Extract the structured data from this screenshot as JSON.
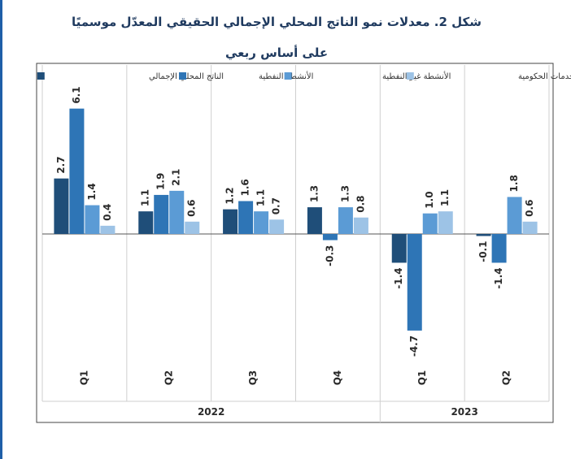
{
  "colors": {
    "gdp": "#1f4e79",
    "oil": "#2e75b6",
    "nonoil": "#5b9bd5",
    "gov": "#9dc3e6",
    "frame": "#444444",
    "grid": "#cfcfcf",
    "title": "#1f3a5f"
  },
  "chart_data": {
    "type": "bar",
    "title": "شكل 2. معدلات نمو الناتج المحلي الإجمالي الحقيقي المعدّل موسميًا",
    "subtitle": "على أساس ربعي",
    "xlabel": "",
    "ylabel": "",
    "ylim": [
      -5,
      7
    ],
    "grid": "vertical separators between quarters",
    "legend_position": "top",
    "categories": [
      "Q1",
      "Q2",
      "Q3",
      "Q4",
      "Q1",
      "Q2"
    ],
    "years": [
      {
        "label": "2022",
        "quarters": 4
      },
      {
        "label": "2023",
        "quarters": 2
      }
    ],
    "series": [
      {
        "name": "الناتج المحلي الإجمالي",
        "key": "gdp",
        "values": [
          2.7,
          1.1,
          1.2,
          1.3,
          -1.4,
          -0.1
        ]
      },
      {
        "name": "الأنشطة النفطية",
        "key": "oil",
        "values": [
          6.1,
          1.9,
          1.6,
          -0.3,
          -4.7,
          -1.4
        ]
      },
      {
        "name": "الأنشطة غير النفطية",
        "key": "nonoil",
        "values": [
          1.4,
          2.1,
          1.1,
          1.3,
          1.0,
          1.8
        ]
      },
      {
        "name": "أنشطة الخدمات الحكومية",
        "key": "gov",
        "values": [
          0.4,
          0.6,
          0.7,
          0.8,
          1.1,
          0.6
        ]
      }
    ]
  }
}
